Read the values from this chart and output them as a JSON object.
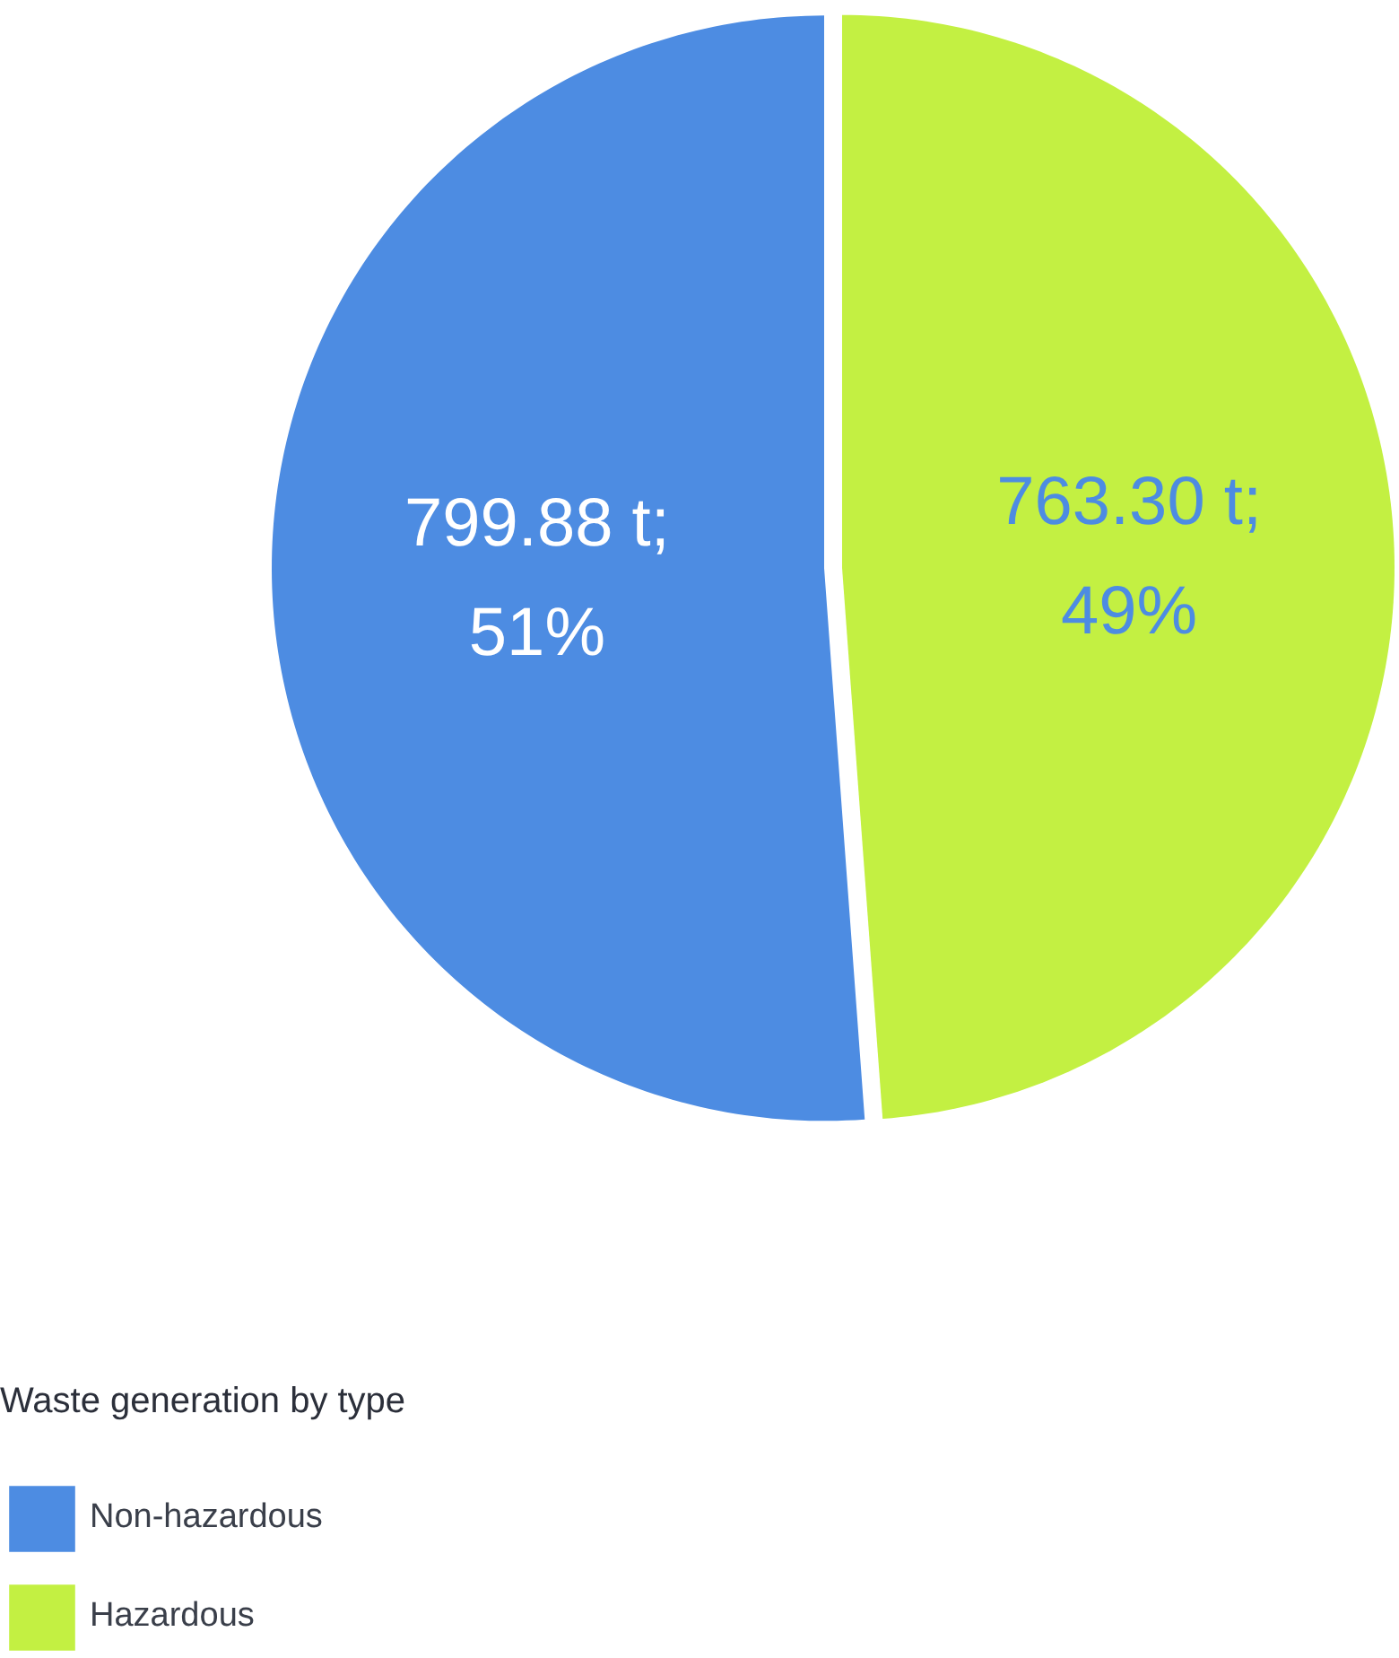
{
  "chart_data": {
    "type": "pie",
    "legend_title": "Waste generation by type",
    "categories": [
      "Non-hazardous",
      "Hazardous"
    ],
    "values": [
      799.88,
      763.3
    ],
    "colors": [
      "#4d8ce2",
      "#c3f042"
    ],
    "value_labels": [
      "799.88 t;\n51%",
      "763.30 t;\n49%"
    ],
    "legend": "bottom left"
  }
}
